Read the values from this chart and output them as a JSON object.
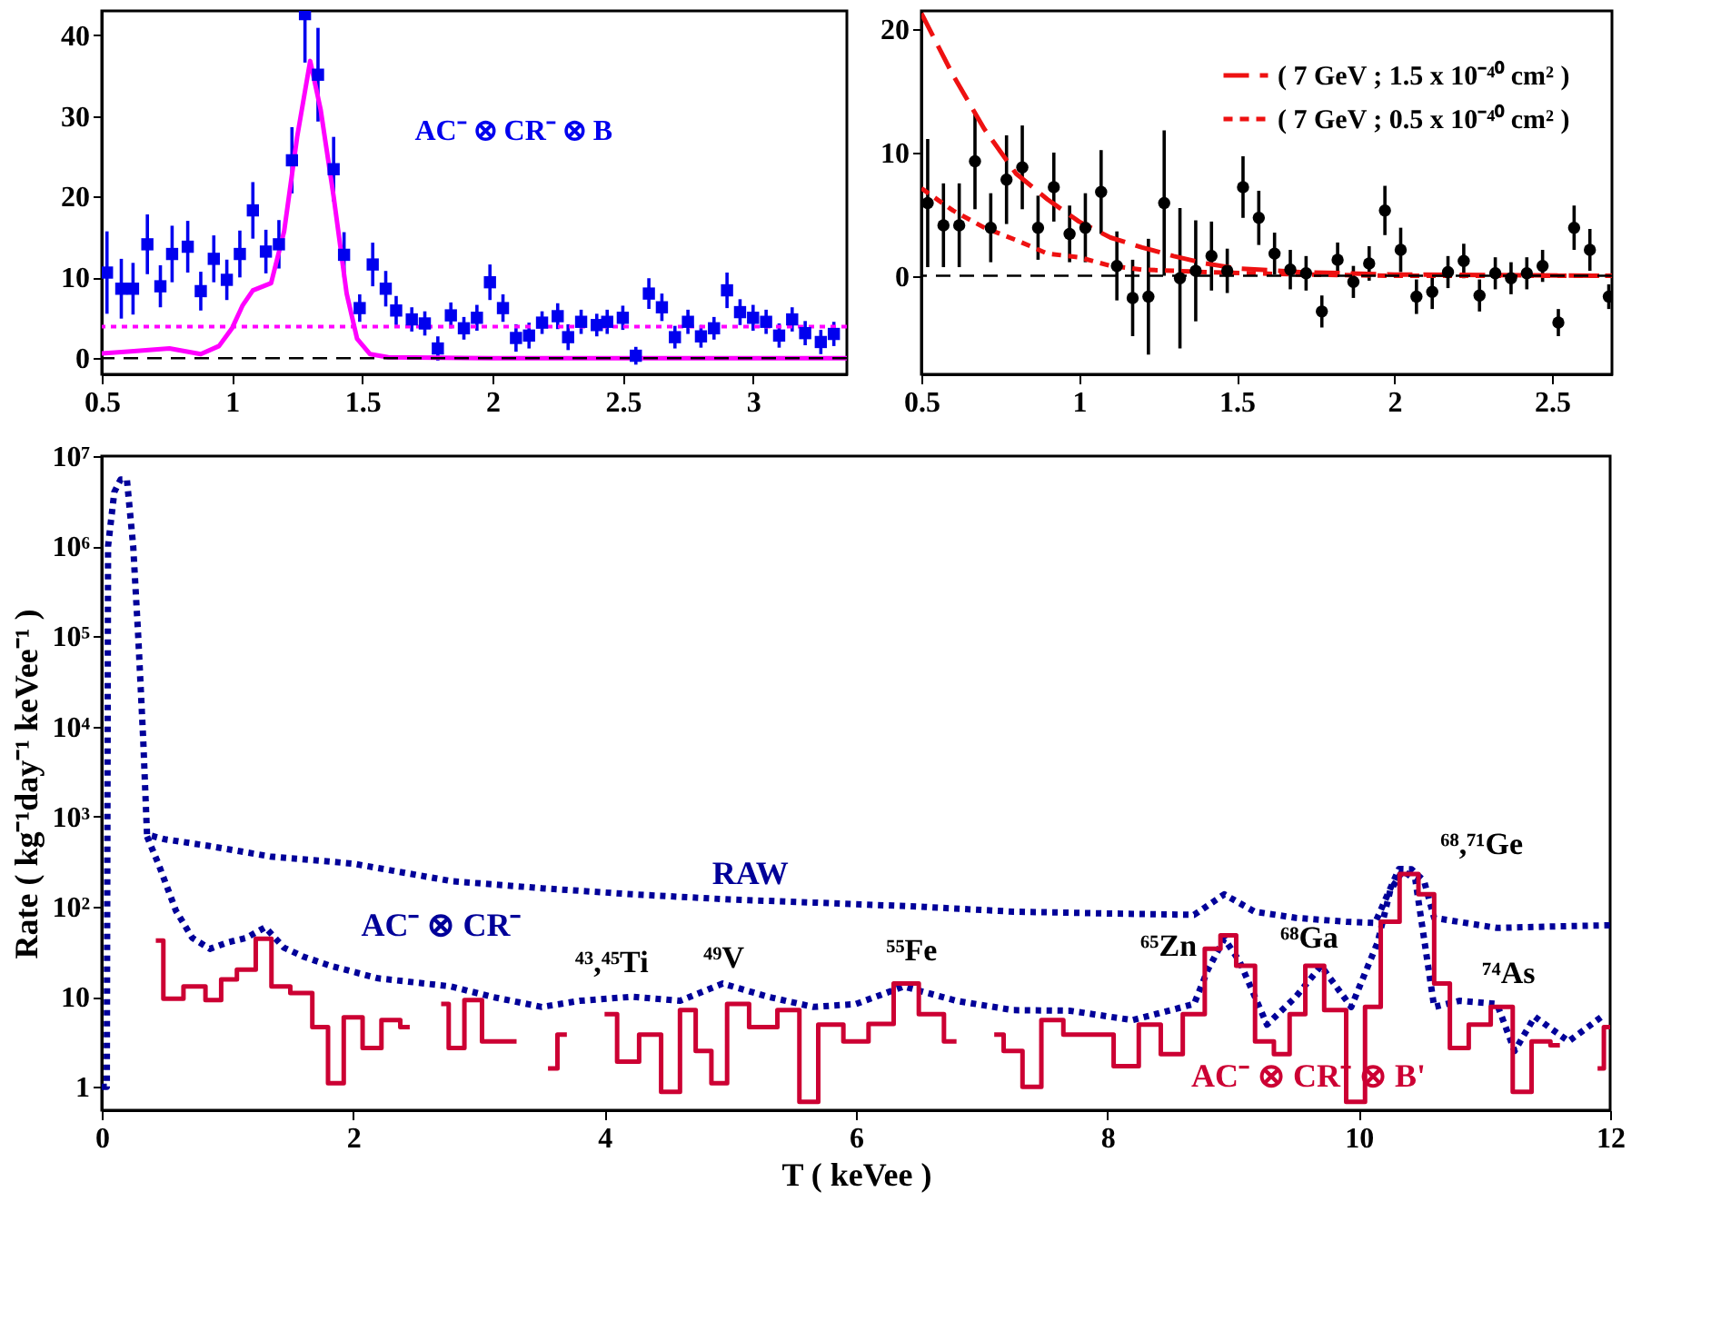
{
  "chart_data": [
    {
      "type": "scatter",
      "xlim": [
        0.5,
        3.36
      ],
      "ylim": [
        -2,
        43
      ],
      "xticks": [
        0.5,
        1,
        1.5,
        2,
        2.5,
        3
      ],
      "yticks": [
        0,
        10,
        20,
        30,
        40
      ],
      "legend": false,
      "grid": false,
      "series": [
        {
          "name": "AC⁻ ⊗ CR⁻ ⊗ B",
          "color": "#0000ee",
          "marker": "square",
          "x": [
            0.52,
            0.575,
            0.62,
            0.675,
            0.725,
            0.77,
            0.83,
            0.88,
            0.93,
            0.98,
            1.03,
            1.08,
            1.13,
            1.18,
            1.23,
            1.28,
            1.33,
            1.39,
            1.43,
            1.49,
            1.54,
            1.59,
            1.63,
            1.69,
            1.74,
            1.79,
            1.84,
            1.89,
            1.94,
            1.99,
            2.04,
            2.09,
            2.14,
            2.19,
            2.25,
            2.29,
            2.34,
            2.4,
            2.44,
            2.5,
            2.55,
            2.6,
            2.65,
            2.7,
            2.75,
            2.8,
            2.85,
            2.9,
            2.95,
            3.0,
            3.05,
            3.1,
            3.15,
            3.2,
            3.26,
            3.31
          ],
          "values": [
            10.6,
            8.6,
            8.6,
            14.1,
            8.9,
            12.9,
            13.8,
            8.3,
            12.3,
            9.7,
            12.9,
            18.3,
            13.2,
            14.1,
            24.5,
            42.6,
            35.1,
            23.4,
            12.8,
            6.2,
            11.6,
            8.6,
            5.9,
            4.8,
            4.3,
            1.2,
            5.3,
            3.7,
            5.0,
            9.4,
            6.2,
            2.5,
            2.8,
            4.4,
            5.2,
            2.6,
            4.5,
            4.1,
            4.5,
            5.0,
            0.3,
            8.0,
            6.3,
            2.6,
            4.5,
            2.7,
            3.7,
            8.4,
            5.7,
            5.0,
            4.5,
            2.8,
            4.8,
            3.1,
            2.0,
            3.0
          ],
          "errors": [
            5.1,
            3.7,
            3.2,
            3.7,
            2.6,
            3.5,
            3.2,
            2.4,
            2.9,
            2.5,
            2.9,
            3.5,
            2.7,
            3.0,
            4.1,
            [
              36.6,
              43
            ],
            5.8,
            4.0,
            2.8,
            1.7,
            2.7,
            2.2,
            1.8,
            1.5,
            1.5,
            1.5,
            1.6,
            1.4,
            1.6,
            2.2,
            1.7,
            1.7,
            1.6,
            1.4,
            1.6,
            1.6,
            1.5,
            1.4,
            1.5,
            1.5,
            1.1,
            1.9,
            1.7,
            1.4,
            1.5,
            1.4,
            1.4,
            2.2,
            1.6,
            1.6,
            1.5,
            1.5,
            1.5,
            1.5,
            1.5,
            1.5
          ]
        },
        {
          "type": "line",
          "color": "#ff00ff",
          "x": [
            0.5,
            0.6,
            0.76,
            0.88,
            0.95,
            1.0,
            1.04,
            1.08,
            1.15,
            1.2,
            1.25,
            1.3,
            1.34,
            1.39,
            1.44,
            1.48,
            1.53,
            1.6,
            2.0,
            2.5,
            3.0,
            3.36
          ],
          "values": [
            0.6,
            0.8,
            1.2,
            0.5,
            1.5,
            3.7,
            6.5,
            8.4,
            9.3,
            15.7,
            27.4,
            36.8,
            30.8,
            20,
            8,
            2.4,
            0.5,
            0.1,
            0,
            0,
            0,
            0
          ]
        }
      ],
      "ref_lines": [
        {
          "axis": "y",
          "value": 3.9,
          "color": "#ff00ff",
          "line_style": "dotted"
        },
        {
          "axis": "y",
          "value": 0,
          "color": "#000000",
          "line_style": "dashed"
        }
      ]
    },
    {
      "type": "scatter",
      "xlim": [
        0.5,
        2.69
      ],
      "ylim": [
        -8,
        21.5
      ],
      "xticks": [
        0.5,
        1,
        1.5,
        2,
        2.5
      ],
      "yticks": [
        0,
        10,
        20
      ],
      "legend": "top right",
      "grid": false,
      "series": [
        {
          "color": "#000000",
          "marker": "circle",
          "x": [
            0.52,
            0.57,
            0.62,
            0.67,
            0.72,
            0.77,
            0.82,
            0.87,
            0.92,
            0.97,
            1.02,
            1.07,
            1.12,
            1.17,
            1.22,
            1.27,
            1.32,
            1.37,
            1.42,
            1.47,
            1.52,
            1.57,
            1.62,
            1.67,
            1.72,
            1.77,
            1.82,
            1.87,
            1.92,
            1.97,
            2.02,
            2.07,
            2.12,
            2.17,
            2.22,
            2.27,
            2.32,
            2.37,
            2.42,
            2.47,
            2.52,
            2.57,
            2.62,
            2.68
          ],
          "values": [
            5.9,
            4.1,
            4.1,
            9.3,
            3.9,
            7.8,
            8.8,
            3.9,
            7.2,
            3.4,
            3.9,
            6.8,
            0.8,
            -1.8,
            -1.7,
            5.9,
            -0.2,
            0.4,
            1.6,
            0.4,
            7.2,
            4.7,
            1.8,
            0.5,
            0.2,
            -2.9,
            1.3,
            -0.5,
            1.0,
            5.3,
            2.1,
            -1.7,
            -1.3,
            0.3,
            1.2,
            -1.6,
            0.2,
            -0.2,
            0.2,
            0.8,
            -3.8,
            3.9,
            2.1,
            -1.7
          ],
          "errors": [
            5.2,
            3.4,
            3.4,
            3.9,
            2.8,
            3.6,
            3.4,
            2.6,
            2.8,
            2.3,
            2.8,
            3.4,
            2.8,
            3.1,
            4.7,
            5.9,
            5.7,
            4.1,
            2.8,
            1.8,
            2.5,
            2.2,
            1.7,
            1.6,
            1.4,
            1.3,
            1.4,
            1.3,
            1.4,
            2.0,
            1.8,
            1.4,
            1.4,
            1.3,
            1.4,
            1.3,
            1.3,
            1.3,
            1.3,
            1.3,
            1.1,
            1.8,
            1.7,
            1.0
          ]
        },
        {
          "name": "( 7 GeV ; 1.5 x 10⁻⁴⁰ cm² )",
          "type": "line",
          "color": "#ee1111",
          "line_style": "dashed",
          "x": [
            0.5,
            0.6,
            0.7,
            0.8,
            0.9,
            1.0,
            1.1,
            1.2,
            1.3,
            1.4,
            1.5,
            1.7,
            2.0,
            2.69
          ],
          "values": [
            21.3,
            16.3,
            11.9,
            8.3,
            6.2,
            4.4,
            3.1,
            2.3,
            1.6,
            1.0,
            0.6,
            0.3,
            0.1,
            0
          ]
        },
        {
          "name": "( 7 GeV ; 0.5 x 10⁻⁴⁰ cm² )",
          "type": "line",
          "color": "#ee1111",
          "line_style": "dashed",
          "x": [
            0.5,
            0.6,
            0.7,
            0.8,
            0.9,
            1.0,
            1.1,
            1.2,
            1.4,
            1.7,
            2.0,
            2.69
          ],
          "values": [
            7.1,
            5.3,
            3.9,
            2.9,
            1.8,
            1.5,
            0.8,
            0.5,
            0.3,
            0.1,
            0,
            0
          ]
        }
      ],
      "ref_lines": [
        {
          "axis": "y",
          "value": 0,
          "color": "#000000",
          "line_style": "dashed"
        }
      ]
    },
    {
      "type": "line",
      "xlabel": "T ( keVee )",
      "ylabel": "Rate ( kg⁻¹day⁻¹ keVee⁻¹ )",
      "xlim": [
        0,
        12
      ],
      "ylim": [
        0.55,
        10000000
      ],
      "log": true,
      "xticks": [
        0,
        2,
        4,
        6,
        8,
        10,
        12
      ],
      "yticks": [
        1,
        10,
        {
          "value": 100,
          "label": "10²"
        },
        {
          "value": 1000,
          "label": "10³"
        },
        {
          "value": 10000,
          "label": "10⁴"
        },
        {
          "value": 100000,
          "label": "10⁵"
        },
        {
          "value": 1000000,
          "label": "10⁶"
        },
        {
          "value": 10000000,
          "label": "10⁷"
        }
      ],
      "legend": false,
      "grid": false,
      "series": [
        {
          "name": "RAW",
          "color": "#000099",
          "line_style": "dotted",
          "x": [
            0,
            0.04,
            0.05,
            0.1,
            0.15,
            0.2,
            0.25,
            0.29,
            0.33,
            0.36,
            0.5,
            0.86,
            1.34,
            2.0,
            2.78,
            3.5,
            4.22,
            5.0,
            5.66,
            6.5,
            7.25,
            8.0,
            8.69,
            8.93,
            9.17,
            9.5,
            9.9,
            10.13,
            10.32,
            10.42,
            10.52,
            10.6,
            11.1,
            11.5,
            12.0
          ],
          "values": [
            1,
            1,
            1000000,
            4000000,
            5500000,
            5500000,
            1000000,
            100000,
            7000,
            630,
            560,
            470,
            360,
            300,
            192,
            160,
            137,
            120,
            111,
            100,
            88,
            84,
            81,
            137,
            88,
            75,
            68,
            66,
            262,
            260,
            192,
            75,
            58,
            60,
            62
          ]
        },
        {
          "name": "AC⁻ ⊗ CR⁻",
          "color": "#000099",
          "line_style": "dotted",
          "x": [
            0.36,
            0.45,
            0.59,
            0.72,
            0.86,
            1.0,
            1.15,
            1.3,
            1.45,
            1.6,
            1.82,
            2.2,
            2.78,
            3.1,
            3.5,
            3.8,
            4.22,
            4.6,
            4.94,
            5.3,
            5.66,
            6.0,
            6.38,
            6.8,
            7.25,
            7.7,
            8.2,
            8.69,
            8.8,
            8.93,
            9.05,
            9.27,
            9.5,
            9.7,
            9.94,
            10.15,
            10.25,
            10.35,
            10.45,
            10.6,
            10.8,
            11.1,
            11.24,
            11.4,
            11.67,
            11.96
          ],
          "values": [
            600,
            300,
            90,
            45,
            34,
            40,
            45,
            59,
            35,
            28,
            22,
            16,
            13,
            10,
            7.7,
            9,
            10,
            9,
            14,
            10,
            7.7,
            8.3,
            13,
            9,
            7.1,
            7,
            5.5,
            8.3,
            20,
            44,
            25,
            4.9,
            10,
            22,
            7.7,
            40,
            150,
            250,
            200,
            7.7,
            9,
            8.3,
            2.5,
            6,
            3.2,
            6.4
          ]
        },
        {
          "name": "AC⁻ ⊗ CR⁻ ⊗ B'",
          "type": "step",
          "color": "#cc0033",
          "line_style": "solid",
          "x": [
            0.43,
            0.55,
            0.75,
            0.9,
            1.0,
            1.15,
            1.3,
            1.4,
            1.6,
            1.75,
            1.85,
            2.0,
            2.15,
            2.3,
            2.45,
            2.6,
            2.7,
            2.82,
            2.95,
            3.1,
            3.3,
            3.45,
            3.55,
            3.7,
            3.85,
            4.0,
            4.2,
            4.35,
            4.55,
            4.65,
            4.8,
            4.9,
            5.05,
            5.25,
            5.5,
            5.6,
            5.8,
            6.0,
            6.2,
            6.4,
            6.6,
            6.8,
            6.95,
            7.1,
            7.25,
            7.4,
            7.55,
            7.75,
            7.95,
            8.15,
            8.35,
            8.5,
            8.7,
            8.85,
            8.95,
            9.1,
            9.25,
            9.4,
            9.5,
            9.65,
            9.8,
            10.0,
            10.1,
            10.25,
            10.4,
            10.55,
            10.65,
            10.8,
            10.95,
            11.15,
            11.3,
            11.45,
            11.6,
            11.75,
            11.9,
            12.0
          ],
          "values": [
            42,
            9.5,
            13,
            9.2,
            15.6,
            20,
            44,
            13,
            11,
            4.6,
            1.1,
            5.9,
            2.7,
            5.5,
            4.6,
            null,
            8.3,
            2.7,
            9.2,
            3.2,
            3.2,
            null,
            1.6,
            3.8,
            null,
            6.4,
            1.9,
            3.8,
            0.88,
            7.1,
            2.5,
            1.1,
            8.3,
            4.6,
            7.1,
            0.68,
            4.9,
            3.2,
            5,
            14,
            6.4,
            3.2,
            null,
            3.8,
            2.5,
            1.0,
            5.5,
            3.8,
            3.8,
            1.7,
            4.9,
            2.3,
            6.4,
            34,
            48,
            22,
            3.2,
            2.3,
            6.4,
            22,
            7.1,
            0.68,
            7.7,
            68,
            230,
            137,
            14,
            2.7,
            4.9,
            7.7,
            0.88,
            3.2,
            2.9,
            null,
            1.6,
            4.6
          ]
        }
      ],
      "annotations": [
        {
          "text": "⁴³,⁴⁵Ti",
          "x": 4.65,
          "y": 7.1
        },
        {
          "text": "⁴⁹V",
          "x": 5.05,
          "y": 8.3
        },
        {
          "text": "⁵⁵Fe",
          "x": 6.4,
          "y": 14
        },
        {
          "text": "⁶⁵Zn",
          "x": 8.95,
          "y": 48
        },
        {
          "text": "⁶⁸Ga",
          "x": 9.65,
          "y": 22
        },
        {
          "text": "⁶⁸,⁷¹Ge",
          "x": 10.4,
          "y": 230
        },
        {
          "text": "⁷⁴As",
          "x": 11.15,
          "y": 7.7
        }
      ]
    }
  ]
}
